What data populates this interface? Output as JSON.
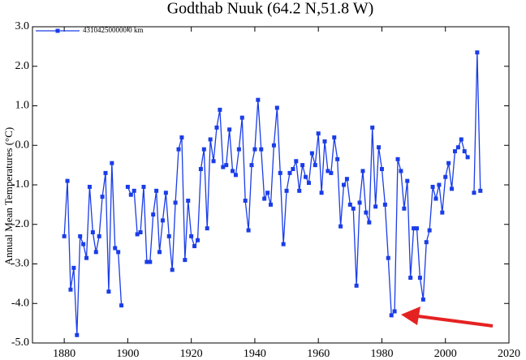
{
  "chart_data": {
    "type": "line",
    "title": "Godthab Nuuk (64.2 N,51.8 W)",
    "y_label": "Annual Mean Temperatures (°C)",
    "xlim": [
      1870,
      2020
    ],
    "xticks": [
      1880,
      1900,
      1920,
      1940,
      1960,
      1980,
      2000,
      2020
    ],
    "ylim": [
      -5,
      3
    ],
    "yticks": [
      {
        "value": -5,
        "label": "-5.0"
      },
      {
        "value": -4,
        "label": "-4.0"
      },
      {
        "value": -3,
        "label": "-3.0"
      },
      {
        "value": -2,
        "label": "-2.0"
      },
      {
        "value": -1,
        "label": "-1.0"
      },
      {
        "value": 0,
        "label": "0.0"
      },
      {
        "value": 1,
        "label": "1.0"
      },
      {
        "value": 2,
        "label": "2.0"
      },
      {
        "value": 3,
        "label": "3.0"
      }
    ],
    "legend": "upper left",
    "x": [
      1880,
      1881,
      1882,
      1883,
      1884,
      1885,
      1886,
      1887,
      1888,
      1889,
      1890,
      1891,
      1892,
      1893,
      1894,
      1895,
      1896,
      1897,
      1898,
      1899,
      1900,
      1901,
      1902,
      1903,
      1904,
      1905,
      1906,
      1907,
      1908,
      1909,
      1910,
      1911,
      1912,
      1913,
      1914,
      1915,
      1916,
      1917,
      1918,
      1919,
      1920,
      1921,
      1922,
      1923,
      1924,
      1925,
      1926,
      1927,
      1928,
      1929,
      1930,
      1931,
      1932,
      1933,
      1934,
      1935,
      1936,
      1937,
      1938,
      1939,
      1940,
      1941,
      1942,
      1943,
      1944,
      1945,
      1946,
      1947,
      1948,
      1949,
      1950,
      1951,
      1952,
      1953,
      1954,
      1955,
      1956,
      1957,
      1958,
      1959,
      1960,
      1961,
      1962,
      1963,
      1964,
      1965,
      1966,
      1967,
      1968,
      1969,
      1970,
      1971,
      1972,
      1973,
      1974,
      1975,
      1976,
      1977,
      1978,
      1979,
      1980,
      1981,
      1982,
      1983,
      1984,
      1985,
      1986,
      1987,
      1988,
      1989,
      1990,
      1991,
      1992,
      1993,
      1994,
      1995,
      1996,
      1997,
      1998,
      1999,
      2000,
      2001,
      2002,
      2003,
      2004,
      2005,
      2006,
      2007,
      2008,
      2009,
      2010,
      2011
    ],
    "series": [
      {
        "name": "431042500000  0 km",
        "color": "#1a3de8",
        "values": [
          -2.3,
          -0.9,
          -3.65,
          -3.1,
          -4.8,
          -2.3,
          -2.5,
          -2.85,
          -1.05,
          -2.2,
          -2.7,
          -2.3,
          -1.3,
          -0.7,
          -3.7,
          -0.45,
          -2.6,
          -2.7,
          -4.05,
          null,
          -1.05,
          -1.25,
          -1.15,
          -2.25,
          -2.2,
          -1.05,
          -2.95,
          -2.95,
          -1.75,
          -1.15,
          -2.7,
          -1.9,
          -1.2,
          -2.3,
          -3.15,
          -1.45,
          -0.1,
          0.2,
          -2.9,
          -1.4,
          -2.3,
          -2.55,
          -2.4,
          -0.6,
          -0.1,
          -2.1,
          0.15,
          -0.4,
          0.45,
          0.9,
          -0.55,
          -0.5,
          0.4,
          -0.65,
          -0.75,
          -0.1,
          0.7,
          -1.4,
          -2.15,
          -0.5,
          -0.1,
          1.15,
          -0.1,
          -1.35,
          -1.2,
          -1.5,
          0.0,
          0.95,
          -0.7,
          -2.5,
          -1.15,
          -0.7,
          -0.6,
          -0.4,
          -1.15,
          -0.5,
          -0.8,
          -0.95,
          -0.2,
          -0.5,
          0.3,
          -1.2,
          0.1,
          -0.65,
          -0.7,
          0.2,
          -0.35,
          -2.05,
          -1.0,
          -0.85,
          -1.5,
          -1.6,
          -3.55,
          -1.45,
          -0.65,
          -1.7,
          -1.95,
          0.45,
          -1.55,
          -0.05,
          -0.6,
          -1.5,
          -2.85,
          -4.3,
          -4.2,
          -0.35,
          -0.65,
          -1.6,
          -0.9,
          -3.35,
          -2.1,
          -2.1,
          -3.35,
          -3.9,
          -2.45,
          -2.15,
          -1.05,
          -1.35,
          -1.0,
          -1.7,
          -0.8,
          -0.45,
          -1.1,
          -0.15,
          -0.05,
          0.15,
          -0.15,
          -0.3,
          null,
          -1.2,
          2.35,
          -1.15
        ]
      }
    ]
  }
}
